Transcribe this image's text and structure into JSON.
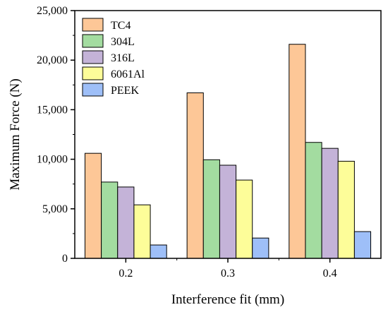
{
  "chart_data": {
    "type": "bar",
    "title": "",
    "xlabel": "Interference fit (mm)",
    "ylabel": "Maximum Force (N)",
    "categories": [
      "0.2",
      "0.3",
      "0.4"
    ],
    "ylim": [
      0,
      25000
    ],
    "yticks": [
      0,
      5000,
      10000,
      15000,
      20000,
      25000
    ],
    "ytick_labels": [
      "0",
      "5,000",
      "10,000",
      "15,000",
      "20,000",
      "25,000"
    ],
    "grid": false,
    "legend_position": "top-left",
    "series": [
      {
        "name": "TC4",
        "color": "#FDC797",
        "values": [
          10600,
          16700,
          21600
        ]
      },
      {
        "name": "304L",
        "color": "#A3DCA0",
        "values": [
          7700,
          9950,
          11700
        ]
      },
      {
        "name": "316L",
        "color": "#C4B3D8",
        "values": [
          7200,
          9400,
          11100
        ]
      },
      {
        "name": "6061Al",
        "color": "#FDFD99",
        "values": [
          5400,
          7900,
          9800
        ]
      },
      {
        "name": "PEEK",
        "color": "#9EBFF8",
        "values": [
          1350,
          2050,
          2700
        ]
      }
    ]
  }
}
